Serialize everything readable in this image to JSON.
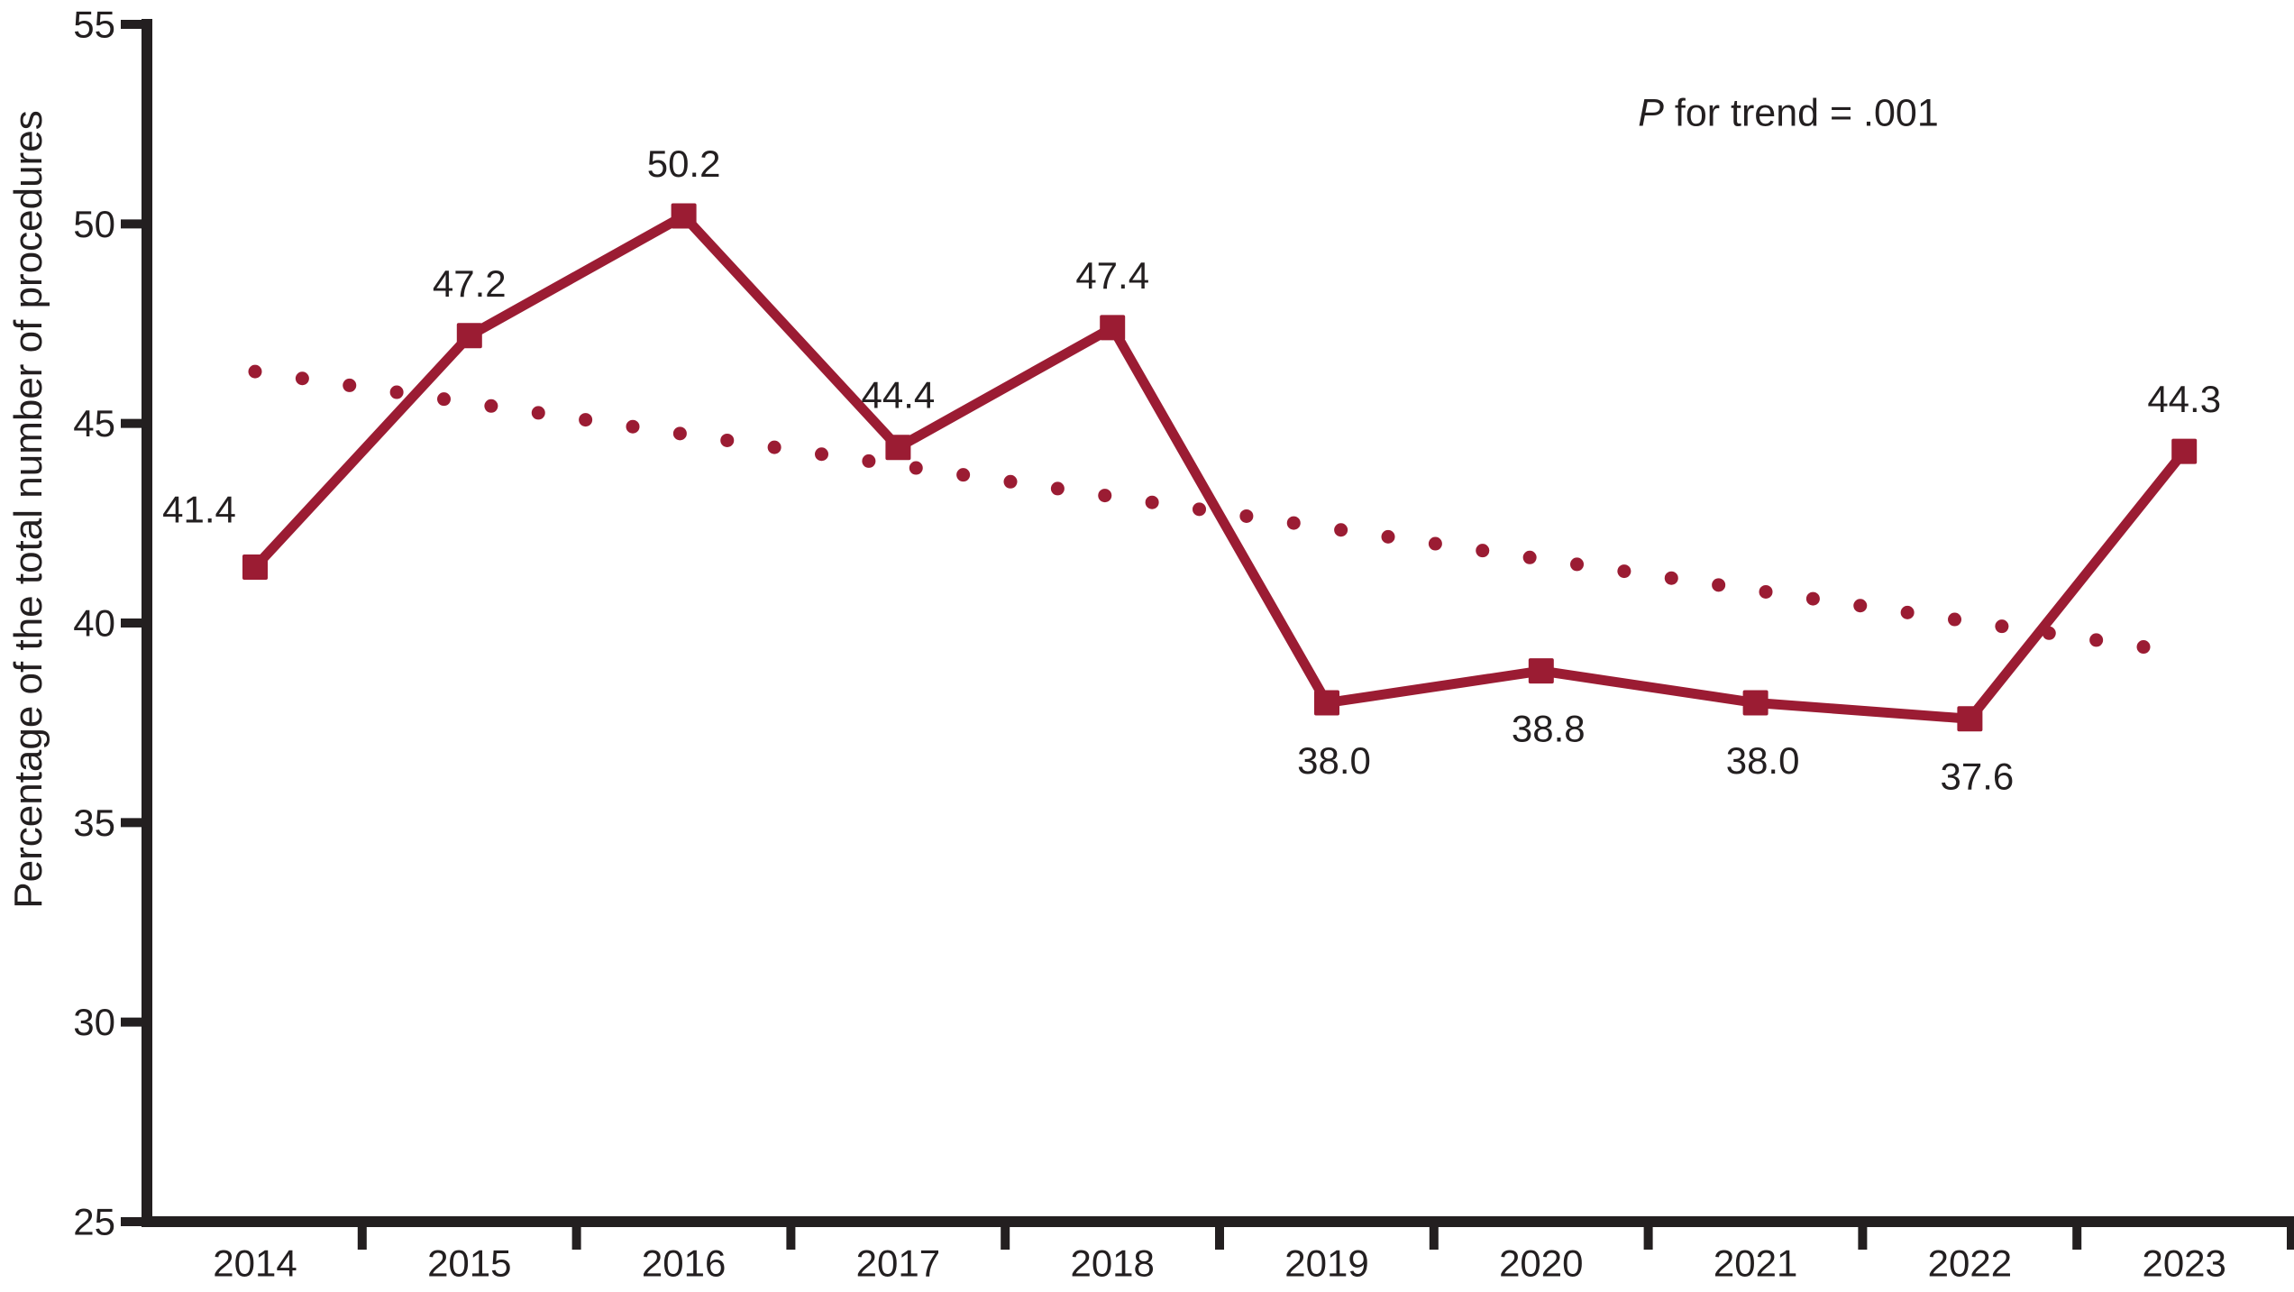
{
  "figure": {
    "background": "#FFFFFF",
    "ink_color": "#231F20",
    "accent_color": "#9B1C33"
  },
  "chart_data": {
    "type": "line",
    "title": "",
    "xlabel": "",
    "ylabel": "Percentage of the total number of procedures",
    "categories": [
      "2014",
      "2015",
      "2016",
      "2017",
      "2018",
      "2019",
      "2020",
      "2021",
      "2022",
      "2023"
    ],
    "series": [
      {
        "name": "percentage-of-procedures",
        "marker": "square",
        "color": "#9B1C33",
        "values": [
          41.4,
          47.2,
          50.2,
          44.4,
          47.4,
          38.0,
          38.8,
          38.0,
          37.6,
          44.3
        ],
        "point_labels": [
          "41.4",
          "47.2",
          "50.2",
          "44.4",
          "47.4",
          "38.0",
          "38.8",
          "38.0",
          "37.6",
          "44.3"
        ],
        "label_placement": [
          "above-left",
          "above",
          "above",
          "above",
          "above",
          "below",
          "below",
          "below",
          "below",
          "above"
        ]
      },
      {
        "name": "linear-trend",
        "style": "dotted",
        "color": "#9B1C33",
        "start": {
          "x_index": 0,
          "value": 46.3
        },
        "end": {
          "x_index": 8.81,
          "value": 39.4
        },
        "dot_count": 41
      }
    ],
    "annotation": {
      "italic_part": "P",
      "text_part": " for trend = .001"
    },
    "ylim": [
      25,
      55
    ],
    "yticks": [
      25,
      30,
      35,
      40,
      45,
      50,
      55
    ],
    "x_axis_ticks": "between-categories",
    "grid": false,
    "legend": "none"
  }
}
